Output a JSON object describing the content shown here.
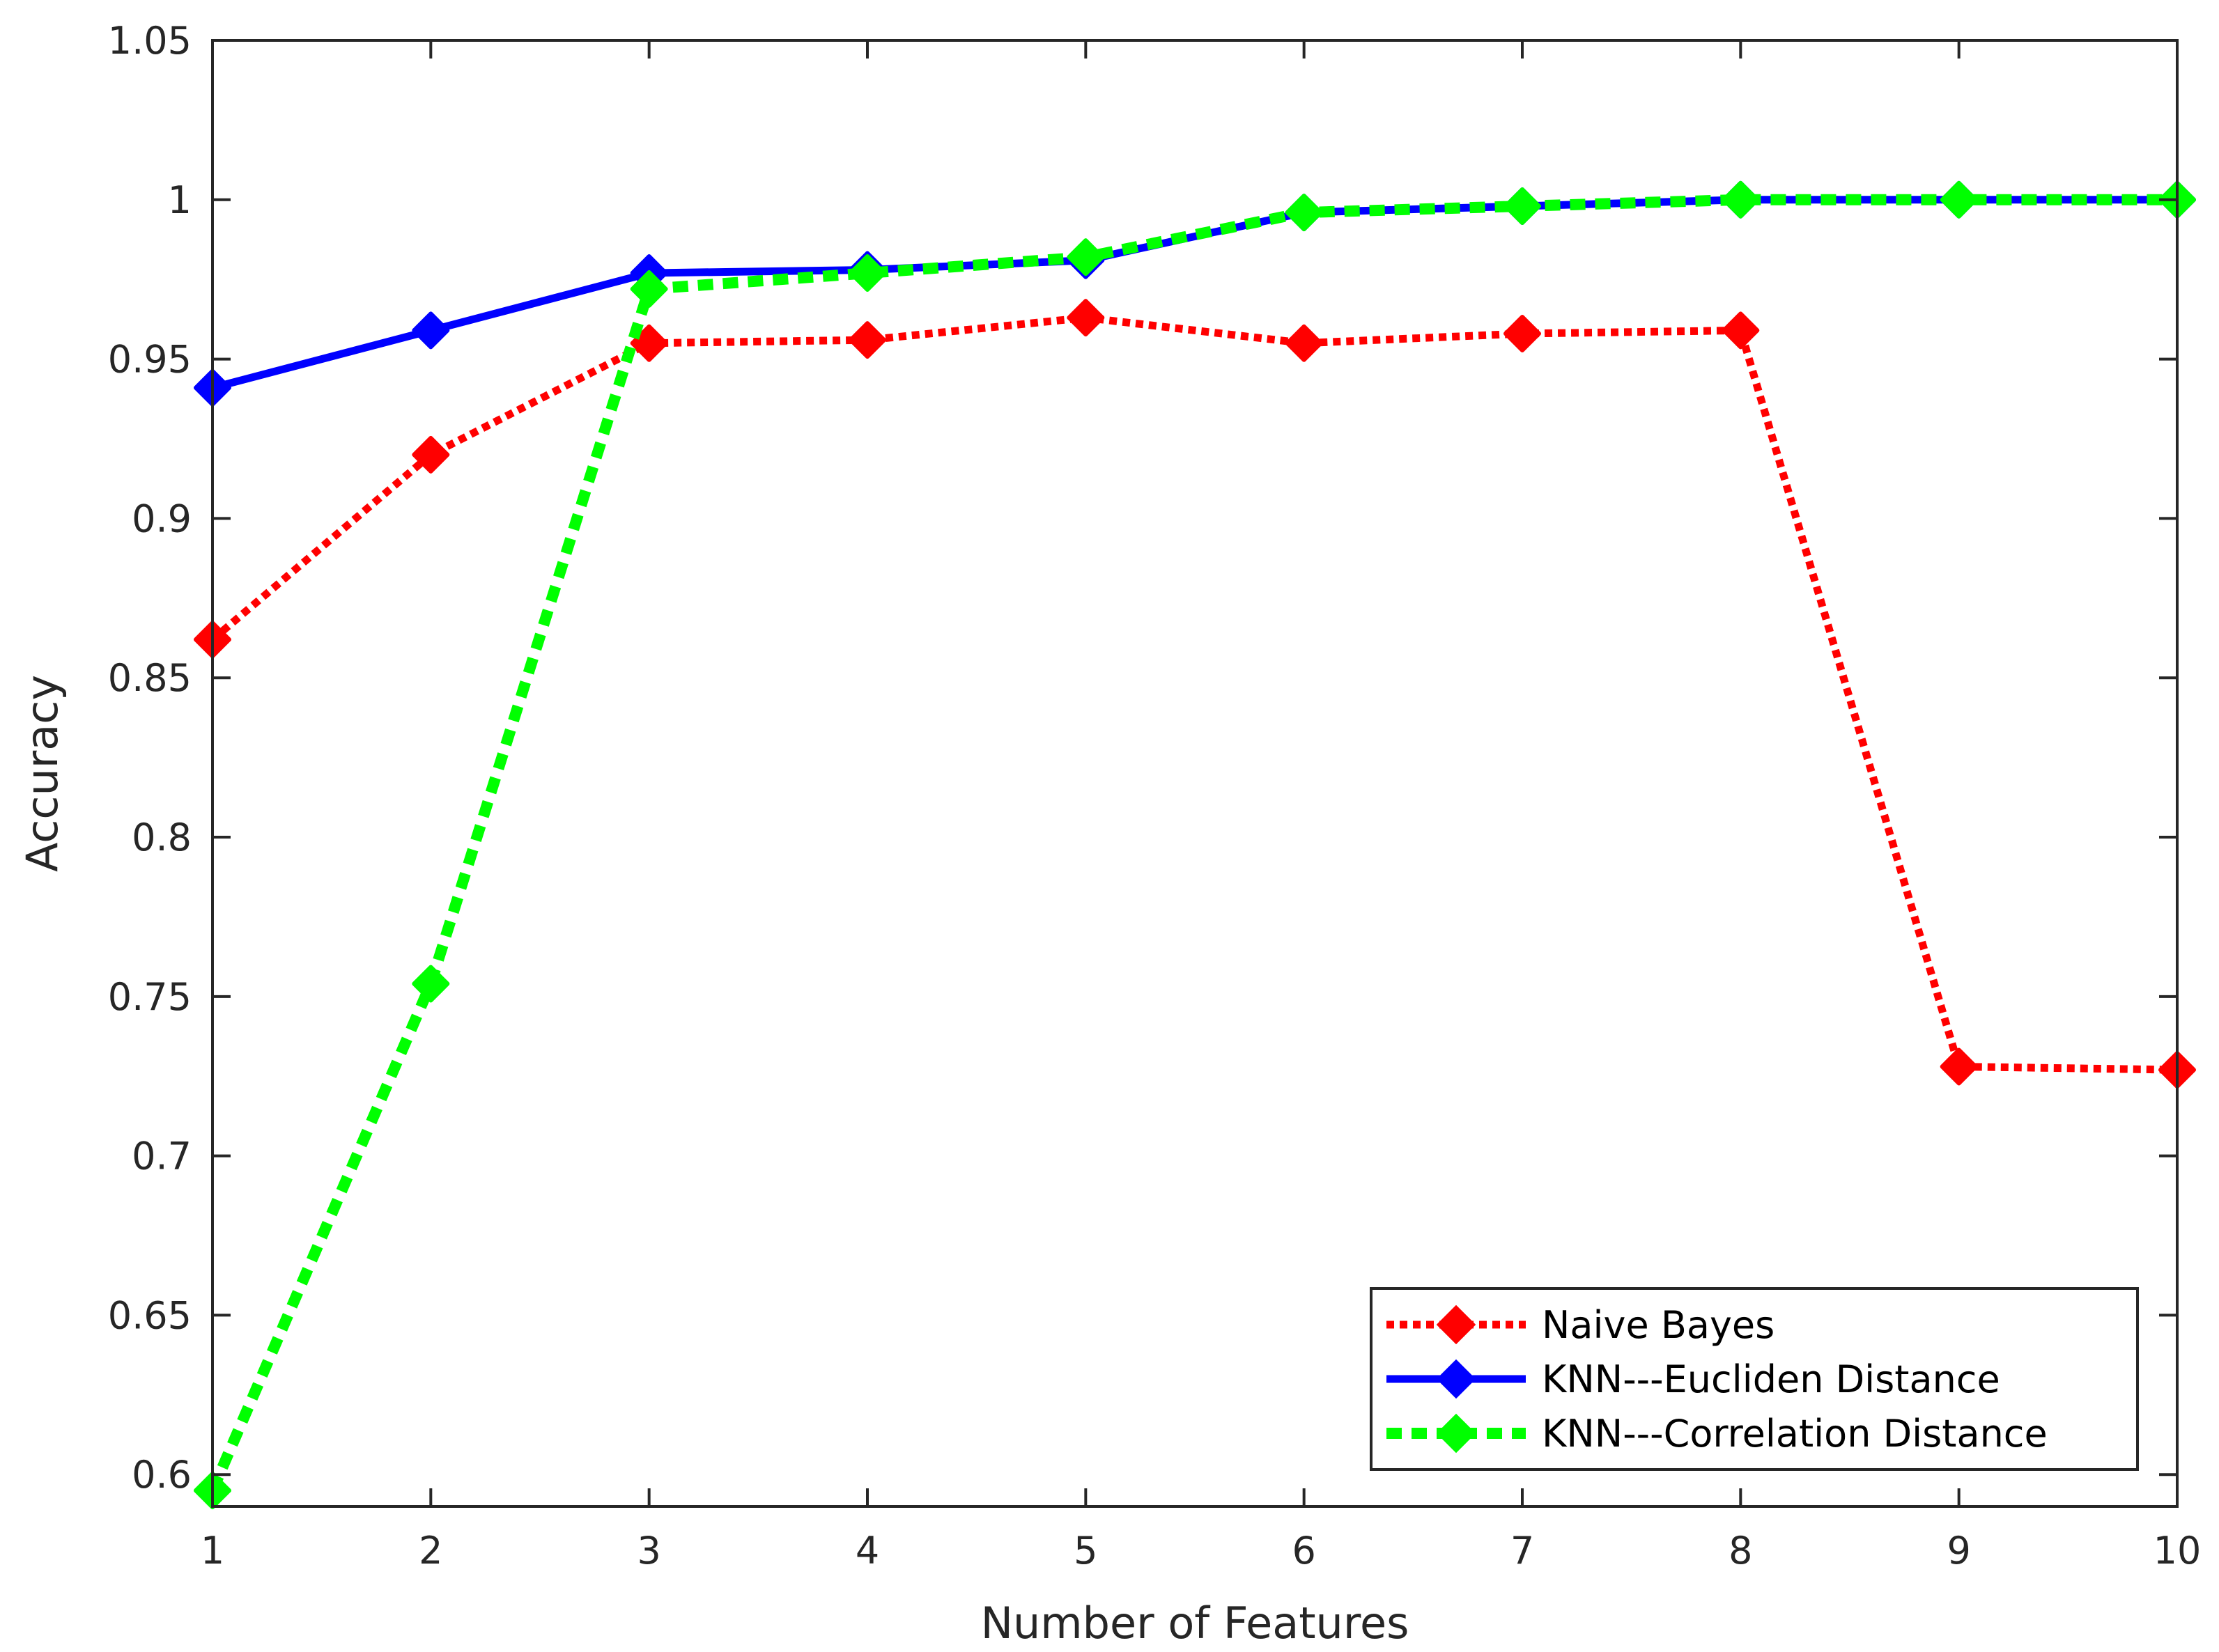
{
  "chart_data": {
    "type": "line",
    "xlabel": "Number of Features",
    "ylabel": "Accuracy",
    "x": [
      1,
      2,
      3,
      4,
      5,
      6,
      7,
      8,
      9,
      10
    ],
    "xlim": [
      1,
      10
    ],
    "ylim": [
      0.59,
      1.05
    ],
    "xticks": [
      "1",
      "2",
      "3",
      "4",
      "5",
      "6",
      "7",
      "8",
      "9",
      "10"
    ],
    "yticks": [
      "0.6",
      "0.65",
      "0.7",
      "0.75",
      "0.8",
      "0.85",
      "0.9",
      "0.95",
      "1",
      "1.05"
    ],
    "grid": false,
    "legend_position": "bottom-right",
    "series": [
      {
        "name": "Naive Bayes",
        "color": "#ff0000",
        "line_style": "dotted",
        "marker": "diamond",
        "values": [
          0.862,
          0.92,
          0.955,
          0.956,
          0.963,
          0.955,
          0.958,
          0.959,
          0.728,
          0.727
        ]
      },
      {
        "name": "KNN---Eucliden Distance",
        "color": "#0000ff",
        "line_style": "solid",
        "marker": "diamond",
        "values": [
          0.941,
          0.959,
          0.977,
          0.978,
          0.981,
          0.996,
          0.998,
          1.0,
          1.0,
          1.0
        ]
      },
      {
        "name": "KNN---Correlation Distance",
        "color": "#00ff00",
        "line_style": "dashed",
        "marker": "diamond",
        "values": [
          0.595,
          0.754,
          0.972,
          0.977,
          0.982,
          0.996,
          0.998,
          1.0,
          1.0,
          1.0
        ]
      }
    ]
  }
}
